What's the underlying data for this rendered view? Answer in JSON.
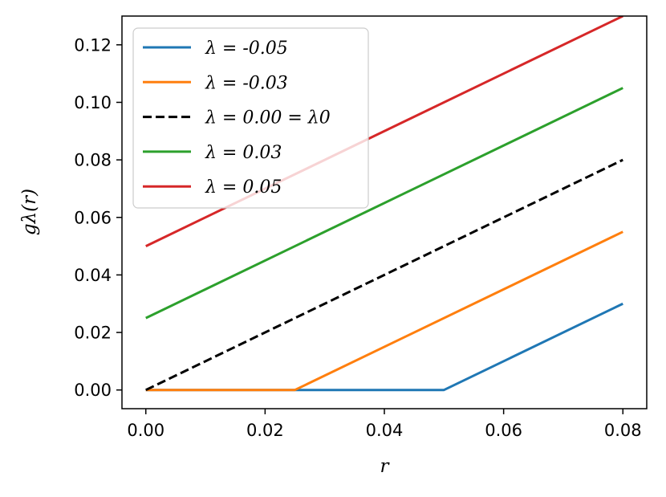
{
  "chart_data": {
    "type": "line",
    "xlabel": "r",
    "ylabel": "gλ(r)",
    "xlim": [
      -0.004,
      0.084
    ],
    "ylim": [
      -0.0065,
      0.13
    ],
    "xticks": [
      {
        "value": 0.0,
        "label": "0.00"
      },
      {
        "value": 0.02,
        "label": "0.02"
      },
      {
        "value": 0.04,
        "label": "0.04"
      },
      {
        "value": 0.06,
        "label": "0.06"
      },
      {
        "value": 0.08,
        "label": "0.08"
      }
    ],
    "yticks": [
      {
        "value": 0.0,
        "label": "0.00"
      },
      {
        "value": 0.02,
        "label": "0.02"
      },
      {
        "value": 0.04,
        "label": "0.04"
      },
      {
        "value": 0.06,
        "label": "0.06"
      },
      {
        "value": 0.08,
        "label": "0.08"
      },
      {
        "value": 0.1,
        "label": "0.10"
      },
      {
        "value": 0.12,
        "label": "0.12"
      }
    ],
    "grid": false,
    "legend_position": "top-left",
    "series": [
      {
        "name": "λ = -0.05",
        "color": "#1f77b4",
        "dash": "solid",
        "x": [
          0.0,
          0.05,
          0.08
        ],
        "y": [
          0.0,
          0.0,
          0.03
        ]
      },
      {
        "name": "λ = -0.03",
        "color": "#ff7f0e",
        "dash": "solid",
        "x": [
          0.0,
          0.025,
          0.08
        ],
        "y": [
          0.0,
          0.0,
          0.055
        ]
      },
      {
        "name": "λ = 0.00 = λ0",
        "color": "#000000",
        "dash": "dashed",
        "x": [
          0.0,
          0.08
        ],
        "y": [
          0.0,
          0.08
        ]
      },
      {
        "name": "λ = 0.03",
        "color": "#2ca02c",
        "dash": "solid",
        "x": [
          0.0,
          0.08
        ],
        "y": [
          0.025,
          0.105
        ]
      },
      {
        "name": "λ = 0.05",
        "color": "#d62728",
        "dash": "solid",
        "x": [
          0.0,
          0.08
        ],
        "y": [
          0.05,
          0.13
        ]
      }
    ]
  }
}
